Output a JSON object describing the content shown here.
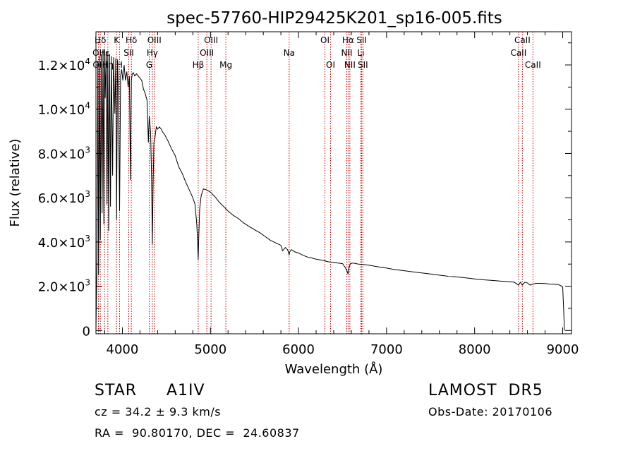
{
  "chart_data": {
    "type": "line",
    "title": "spec-57760-HIP29425K201_sp16-005.fits",
    "xlabel": "Wavelength (Å)",
    "ylabel": "Flux (relative)",
    "xlim": [
      3700,
      9100
    ],
    "ylim": [
      -150,
      13500
    ],
    "x_ticks": [
      4000,
      5000,
      6000,
      7000,
      8000,
      9000
    ],
    "x_tick_labels": [
      "4000",
      "5000",
      "6000",
      "7000",
      "8000",
      "9000"
    ],
    "y_ticks": [
      {
        "value": 0,
        "mantissa": "0",
        "exponent": ""
      },
      {
        "value": 2000,
        "mantissa": "2.0×10",
        "exponent": "3"
      },
      {
        "value": 4000,
        "mantissa": "4.0×10",
        "exponent": "3"
      },
      {
        "value": 6000,
        "mantissa": "6.0×10",
        "exponent": "3"
      },
      {
        "value": 8000,
        "mantissa": "8.0×10",
        "exponent": "3"
      },
      {
        "value": 10000,
        "mantissa": "1.0×10",
        "exponent": "4"
      },
      {
        "value": 12000,
        "mantissa": "1.2×10",
        "exponent": "4"
      }
    ],
    "line_markers": [
      {
        "label": "Hδ",
        "wavelength": 3750,
        "row": 0
      },
      {
        "label": "OII",
        "wavelength": 3727,
        "row": 1
      },
      {
        "label": "OII",
        "wavelength": 3729,
        "row": 2
      },
      {
        "label": "Hε",
        "wavelength": 3797,
        "row": 1
      },
      {
        "label": "Hη",
        "wavelength": 3835,
        "row": 2
      },
      {
        "label": "K",
        "wavelength": 3934,
        "row": 0
      },
      {
        "label": "H",
        "wavelength": 3968,
        "row": 2
      },
      {
        "label": "Hδ",
        "wavelength": 4102,
        "row": 0
      },
      {
        "label": "SII",
        "wavelength": 4072,
        "row": 1
      },
      {
        "label": "OIII",
        "wavelength": 4363,
        "row": 0
      },
      {
        "label": "Hγ",
        "wavelength": 4340,
        "row": 1
      },
      {
        "label": "G",
        "wavelength": 4305,
        "row": 2
      },
      {
        "label": "Hβ",
        "wavelength": 4861,
        "row": 2
      },
      {
        "label": "OIII",
        "wavelength": 5007,
        "row": 0
      },
      {
        "label": "OIII",
        "wavelength": 4959,
        "row": 1
      },
      {
        "label": "Mg",
        "wavelength": 5175,
        "row": 2
      },
      {
        "label": "Na",
        "wavelength": 5894,
        "row": 1
      },
      {
        "label": "OI",
        "wavelength": 6300,
        "row": 0
      },
      {
        "label": "OI",
        "wavelength": 6364,
        "row": 2
      },
      {
        "label": "Hα",
        "wavelength": 6563,
        "row": 0
      },
      {
        "label": "NII",
        "wavelength": 6548,
        "row": 1
      },
      {
        "label": "NII",
        "wavelength": 6583,
        "row": 2
      },
      {
        "label": "SII",
        "wavelength": 6717,
        "row": 0
      },
      {
        "label": "Li",
        "wavelength": 6708,
        "row": 1
      },
      {
        "label": "SII",
        "wavelength": 6731,
        "row": 2
      },
      {
        "label": "CaII",
        "wavelength": 8542,
        "row": 0
      },
      {
        "label": "CaII",
        "wavelength": 8498,
        "row": 1
      },
      {
        "label": "CaII",
        "wavelength": 8662,
        "row": 2
      }
    ],
    "series": [
      {
        "x": [
          3700,
          3712,
          3722,
          3730,
          3740,
          3750,
          3760,
          3770,
          3780,
          3790,
          3797,
          3805,
          3815,
          3825,
          3835,
          3845,
          3855,
          3865,
          3875,
          3889,
          3900,
          3915,
          3925,
          3934,
          3945,
          3955,
          3968,
          3980,
          3992,
          4005,
          4020,
          4035,
          4050,
          4065,
          4080,
          4092,
          4102,
          4112,
          4125,
          4140,
          4160,
          4180,
          4200,
          4220,
          4240,
          4260,
          4280,
          4295,
          4305,
          4320,
          4332,
          4340,
          4348,
          4358,
          4370,
          4385,
          4400,
          4420,
          4440,
          4460,
          4480,
          4520,
          4560,
          4600,
          4640,
          4680,
          4720,
          4760,
          4800,
          4825,
          4845,
          4855,
          4861,
          4867,
          4878,
          4895,
          4920,
          4960,
          5000,
          5050,
          5100,
          5150,
          5200,
          5260,
          5320,
          5380,
          5440,
          5500,
          5560,
          5620,
          5680,
          5740,
          5800,
          5820,
          5850,
          5875,
          5890,
          5894,
          5900,
          5920,
          5960,
          6000,
          6050,
          6100,
          6150,
          6200,
          6260,
          6300,
          6320,
          6350,
          6400,
          6450,
          6500,
          6530,
          6550,
          6563,
          6575,
          6590,
          6620,
          6680,
          6740,
          6800,
          6900,
          7000,
          7100,
          7200,
          7300,
          7400,
          7500,
          7600,
          7700,
          7800,
          7900,
          8000,
          8100,
          8200,
          8300,
          8400,
          8450,
          8498,
          8520,
          8542,
          8570,
          8600,
          8630,
          8662,
          8700,
          8750,
          8800,
          8850,
          8900,
          8950,
          8980,
          9000,
          9010,
          9020
        ],
        "values": [
          0,
          3300,
          12200,
          2500,
          12400,
          4100,
          12500,
          5300,
          12600,
          4800,
          12700,
          10500,
          12600,
          5700,
          12500,
          4500,
          12500,
          5600,
          12400,
          7000,
          12350,
          9800,
          12300,
          5000,
          12250,
          10800,
          5400,
          11500,
          11800,
          11300,
          12000,
          11300,
          11700,
          11000,
          11500,
          6800,
          11300,
          11600,
          11650,
          11500,
          11600,
          11500,
          11400,
          11300,
          10900,
          10700,
          10400,
          8500,
          9700,
          9000,
          6800,
          3900,
          6400,
          8500,
          8700,
          9200,
          9100,
          9200,
          9100,
          8950,
          8850,
          8550,
          8200,
          7900,
          7400,
          7100,
          6700,
          6350,
          6000,
          5700,
          4800,
          3900,
          3200,
          4200,
          5500,
          6100,
          6400,
          6350,
          6250,
          6050,
          5800,
          5600,
          5400,
          5200,
          5050,
          4850,
          4700,
          4550,
          4420,
          4250,
          4080,
          3960,
          3850,
          3600,
          3750,
          3650,
          3500,
          3400,
          3550,
          3650,
          3550,
          3500,
          3400,
          3320,
          3280,
          3220,
          3180,
          3150,
          3120,
          3100,
          3080,
          3050,
          3020,
          2850,
          2700,
          2550,
          2850,
          3020,
          3050,
          3000,
          2980,
          2950,
          2880,
          2820,
          2750,
          2700,
          2650,
          2600,
          2550,
          2500,
          2450,
          2420,
          2380,
          2330,
          2290,
          2260,
          2230,
          2200,
          2180,
          2050,
          2180,
          2050,
          2180,
          2150,
          2050,
          2100,
          2130,
          2130,
          2120,
          2100,
          2090,
          2080,
          2020,
          1980,
          1000,
          0
        ]
      }
    ]
  },
  "info": {
    "object_class": "STAR",
    "subclass": "A1IV",
    "survey": "LAMOST  DR5",
    "cz": "cz = 34.2 ± 9.3 km/s",
    "obs_date": "Obs-Date: 20170106",
    "coords": "RA =  90.80170, DEC =  24.60837"
  }
}
